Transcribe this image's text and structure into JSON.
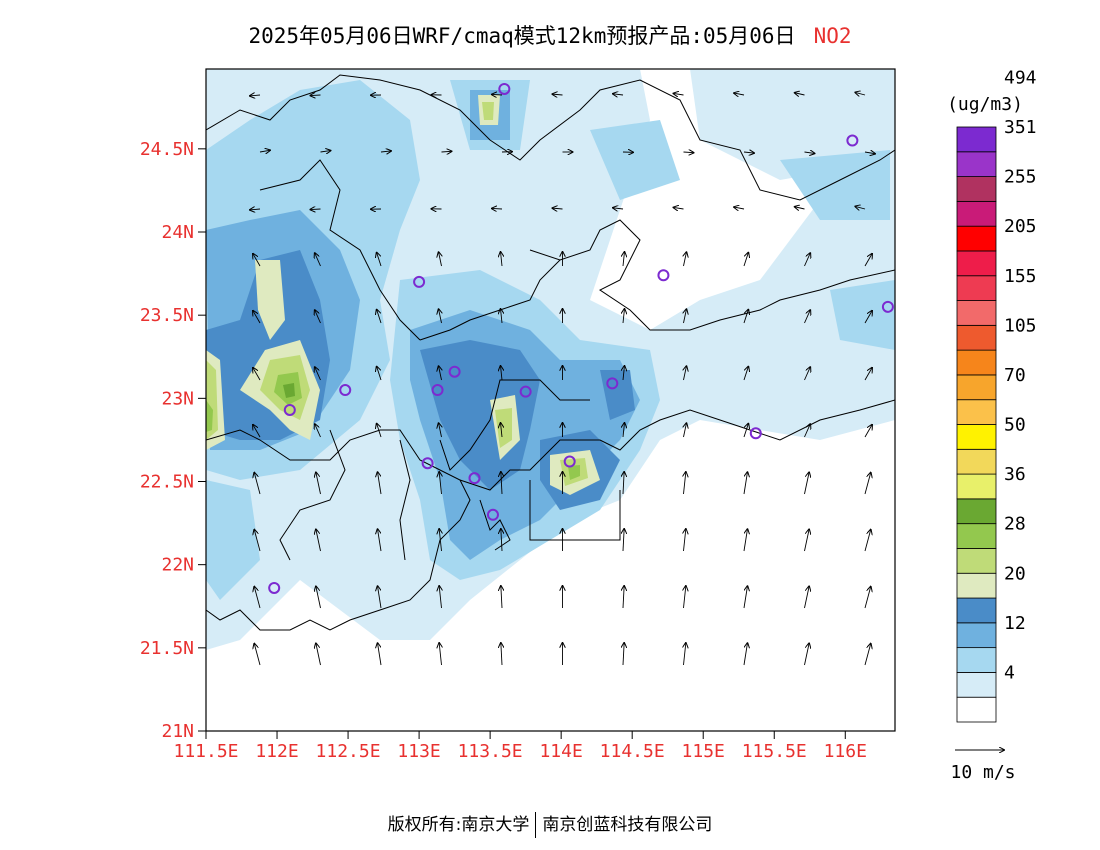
{
  "title": {
    "text": "2025年05月06日WRF/cmaq模式12km预报产品:05月06日",
    "species": "NO2"
  },
  "axes": {
    "lat_labels": [
      "24.5N",
      "24N",
      "23.5N",
      "23N",
      "22.5N",
      "22N",
      "21.5N",
      "21N"
    ],
    "lat_values": [
      24.5,
      24.0,
      23.5,
      23.0,
      22.5,
      22.0,
      21.5,
      21.0
    ],
    "lon_labels": [
      "111.5E",
      "112E",
      "112.5E",
      "113E",
      "113.5E",
      "114E",
      "114.5E",
      "115E",
      "115.5E",
      "116E"
    ],
    "lon_values": [
      111.5,
      112.0,
      112.5,
      113.0,
      113.5,
      114.0,
      114.5,
      115.0,
      115.5,
      116.0
    ],
    "lon_range": [
      111.5,
      116.35
    ],
    "lat_range": [
      21.0,
      24.98
    ]
  },
  "colorbar": {
    "unit": "(ug/m3)",
    "colors": [
      "#ffffff",
      "#d6ecf7",
      "#a6d8f0",
      "#6fb1df",
      "#4a8cc8",
      "#dfeac0",
      "#bfdb78",
      "#93c84e",
      "#6aa832",
      "#e8f06a",
      "#f2d85a",
      "#fff200",
      "#fbc14a",
      "#f7a52c",
      "#f6851b",
      "#ee5a2e",
      "#f26a6a",
      "#ee3b52",
      "#ee1d4a",
      "#ff0000",
      "#c91b78",
      "#b03260",
      "#9a34c9",
      "#7c2ad0"
    ],
    "labels": [
      "4",
      "12",
      "20",
      "28",
      "36",
      "50",
      "70",
      "105",
      "155",
      "205",
      "255",
      "351",
      "494"
    ]
  },
  "wind_legend": {
    "label": "10 m/s"
  },
  "stations": [
    {
      "lon": 113.6,
      "lat": 24.86
    },
    {
      "lon": 116.05,
      "lat": 24.55
    },
    {
      "lon": 113.0,
      "lat": 23.7
    },
    {
      "lon": 114.72,
      "lat": 23.74
    },
    {
      "lon": 116.3,
      "lat": 23.55
    },
    {
      "lon": 113.25,
      "lat": 23.16
    },
    {
      "lon": 112.48,
      "lat": 23.05
    },
    {
      "lon": 113.13,
      "lat": 23.05
    },
    {
      "lon": 113.75,
      "lat": 23.04
    },
    {
      "lon": 114.36,
      "lat": 23.09
    },
    {
      "lon": 112.09,
      "lat": 22.93
    },
    {
      "lon": 115.37,
      "lat": 22.79
    },
    {
      "lon": 113.06,
      "lat": 22.61
    },
    {
      "lon": 113.39,
      "lat": 22.52
    },
    {
      "lon": 114.06,
      "lat": 22.62
    },
    {
      "lon": 113.52,
      "lat": 22.3
    },
    {
      "lon": 111.98,
      "lat": 21.86
    }
  ],
  "footer": {
    "left": "版权所有:南京大学",
    "right": "南京创蓝科技有限公司"
  }
}
